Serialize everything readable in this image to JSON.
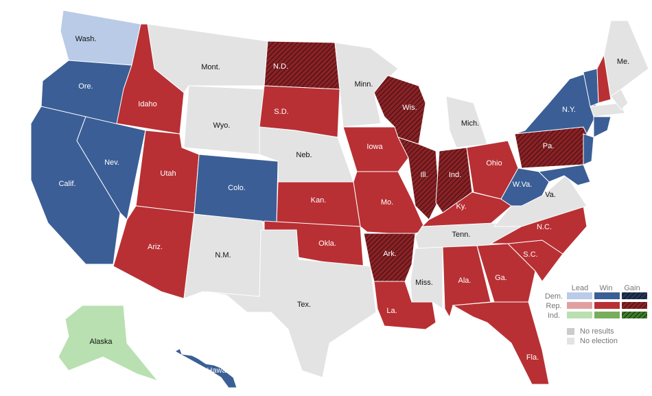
{
  "states": [
    {
      "label": "Wash.",
      "status": "dem-lead"
    },
    {
      "label": "Ore.",
      "status": "dem-win"
    },
    {
      "label": "Calif.",
      "status": "dem-win"
    },
    {
      "label": "Nev.",
      "status": "dem-win"
    },
    {
      "label": "Idaho",
      "status": "rep-win"
    },
    {
      "label": "Mont.",
      "status": "none"
    },
    {
      "label": "Wyo.",
      "status": "none"
    },
    {
      "label": "Utah",
      "status": "rep-win"
    },
    {
      "label": "Colo.",
      "status": "dem-win"
    },
    {
      "label": "Ariz.",
      "status": "rep-win"
    },
    {
      "label": "N.M.",
      "status": "none"
    },
    {
      "label": "N.D.",
      "status": "rep-gain"
    },
    {
      "label": "S.D.",
      "status": "rep-win"
    },
    {
      "label": "Neb.",
      "status": "none"
    },
    {
      "label": "Kan.",
      "status": "rep-win"
    },
    {
      "label": "Okla.",
      "status": "rep-win"
    },
    {
      "label": "Tex.",
      "status": "none"
    },
    {
      "label": "Minn.",
      "status": "none"
    },
    {
      "label": "Iowa",
      "status": "rep-win"
    },
    {
      "label": "Mo.",
      "status": "rep-win"
    },
    {
      "label": "Ark.",
      "status": "rep-gain"
    },
    {
      "label": "La.",
      "status": "rep-win"
    },
    {
      "label": "Wis.",
      "status": "rep-gain"
    },
    {
      "label": "Ill.",
      "status": "rep-gain"
    },
    {
      "label": "Ind.",
      "status": "rep-gain"
    },
    {
      "label": "Mich.",
      "status": "none"
    },
    {
      "label": "Ohio",
      "status": "rep-win"
    },
    {
      "label": "Ky.",
      "status": "rep-win"
    },
    {
      "label": "Tenn.",
      "status": "none"
    },
    {
      "label": "Miss.",
      "status": "none"
    },
    {
      "label": "Ala.",
      "status": "rep-win"
    },
    {
      "label": "Ga.",
      "status": "rep-win"
    },
    {
      "label": "Fla.",
      "status": "rep-win"
    },
    {
      "label": "S.C.",
      "status": "rep-win"
    },
    {
      "label": "N.C.",
      "status": "rep-win"
    },
    {
      "label": "Va.",
      "status": "none"
    },
    {
      "label": "W.Va.",
      "status": "dem-win"
    },
    {
      "label": "Pa.",
      "status": "rep-gain"
    },
    {
      "label": "N.Y.",
      "status": "dem-win"
    },
    {
      "label": "Me.",
      "status": "none"
    },
    {
      "label": "Alaska",
      "status": "ind-lead"
    },
    {
      "label": "Hawaii",
      "status": "dem-win"
    },
    {
      "status": "dem-win"
    },
    {
      "status": "dem-win"
    },
    {
      "status": "dem-win"
    },
    {
      "status": "rep-win"
    },
    {
      "status": "none"
    },
    {
      "status": "dem-win"
    },
    {
      "status": "none"
    }
  ],
  "legend": {
    "columns": [
      "Lead",
      "Win",
      "Gain"
    ],
    "rows": [
      "Dem.",
      "Rep.",
      "Ind."
    ],
    "other": [
      "No results",
      "No election"
    ]
  }
}
